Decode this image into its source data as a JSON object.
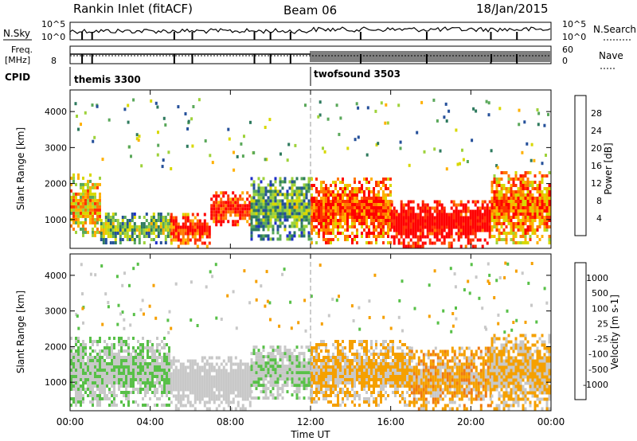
{
  "header": {
    "station": "Rankin Inlet (fitACF)",
    "beam": "Beam 06",
    "date": "18/Jan/2015"
  },
  "top_panels": {
    "nsky_label": "N.Sky",
    "nsky_ticks": [
      "10^5",
      "10^0"
    ],
    "nsearch_label": "N.Search",
    "nsearch_ticks": [
      "10^5",
      "10^0"
    ],
    "freq_label": "Freq.",
    "freq_unit": "[MHz]",
    "freq_ticks": [
      "8"
    ],
    "nave_label": "Nave",
    "nave_ticks": [
      "60",
      "0"
    ],
    "cpid_label": "CPID",
    "cpid_segments": [
      {
        "name": "themis 3300",
        "start_hour": 0
      },
      {
        "name": "twofsound 3503",
        "start_hour": 12
      }
    ]
  },
  "chart_data": [
    {
      "type": "heatmap",
      "title": "",
      "xlabel": "",
      "ylabel": "Slant Range [km]",
      "xlim": [
        0,
        24
      ],
      "ylim": [
        200,
        4600
      ],
      "yticks": [
        1000,
        2000,
        3000,
        4000
      ],
      "colorbar": {
        "label": "Power [dB]",
        "ticks": [
          "28",
          "24",
          "20",
          "16",
          "12",
          "8",
          "4"
        ],
        "colors": [
          "#ff0000",
          "#ff3300",
          "#ff7b00",
          "#ffb000",
          "#d8d800",
          "#9ed23a",
          "#5aa85a",
          "#2e7a5e",
          "#25509a",
          "#1f2fc8",
          "#0000ff"
        ],
        "range": [
          0,
          32
        ]
      },
      "regions": [
        {
          "start_hour": 0.0,
          "end_hour": 1.5,
          "range_km": [
            600,
            2300
          ],
          "value": 18
        },
        {
          "start_hour": 1.5,
          "end_hour": 5.0,
          "range_km": [
            400,
            1200
          ],
          "value": 12
        },
        {
          "start_hour": 5.0,
          "end_hour": 7.0,
          "range_km": [
            300,
            1200
          ],
          "value": 26
        },
        {
          "start_hour": 7.0,
          "end_hour": 9.0,
          "range_km": [
            900,
            1800
          ],
          "value": 27
        },
        {
          "start_hour": 9.0,
          "end_hour": 12.0,
          "range_km": [
            500,
            2200
          ],
          "value": 10
        },
        {
          "start_hour": 12.0,
          "end_hour": 16.0,
          "range_km": [
            400,
            2200
          ],
          "value": 24
        },
        {
          "start_hour": 16.0,
          "end_hour": 21.0,
          "range_km": [
            300,
            1600
          ],
          "value": 30
        },
        {
          "start_hour": 21.0,
          "end_hour": 24.0,
          "range_km": [
            400,
            2400
          ],
          "value": 22
        }
      ]
    },
    {
      "type": "heatmap",
      "title": "",
      "xlabel": "Time UT",
      "ylabel": "Slant Range [km]",
      "xlim": [
        0,
        24
      ],
      "ylim": [
        200,
        4600
      ],
      "xticks": [
        "00:00",
        "04:00",
        "08:00",
        "12:00",
        "16:00",
        "20:00",
        "00:00"
      ],
      "yticks": [
        1000,
        2000,
        3000,
        4000
      ],
      "colorbar": {
        "label": "Velocity [m s-1]",
        "ticks": [
          "1000",
          "500",
          "100",
          "25",
          "-25",
          "-100",
          "-500",
          "-1000"
        ],
        "colors": [
          "#2d56c0",
          "#2f7a9a",
          "#2e8e5a",
          "#58c048",
          "#c8c8c8",
          "#f5a000",
          "#f07a10",
          "#f0500a",
          "#ff0000"
        ],
        "range": [
          -1000,
          1000
        ]
      },
      "regions": [
        {
          "start_hour": 0.0,
          "end_hour": 5.0,
          "range_km": [
            400,
            2300
          ],
          "value": 100
        },
        {
          "start_hour": 5.0,
          "end_hour": 9.0,
          "range_km": [
            300,
            1800
          ],
          "value": 50
        },
        {
          "start_hour": 9.0,
          "end_hour": 12.0,
          "range_km": [
            600,
            2100
          ],
          "value": 80
        },
        {
          "start_hour": 12.0,
          "end_hour": 17.0,
          "range_km": [
            400,
            2200
          ],
          "value": -150
        },
        {
          "start_hour": 17.0,
          "end_hour": 21.0,
          "range_km": [
            300,
            2000
          ],
          "value": -200
        },
        {
          "start_hour": 21.0,
          "end_hour": 24.0,
          "range_km": [
            300,
            2400
          ],
          "value": -150
        }
      ]
    }
  ]
}
